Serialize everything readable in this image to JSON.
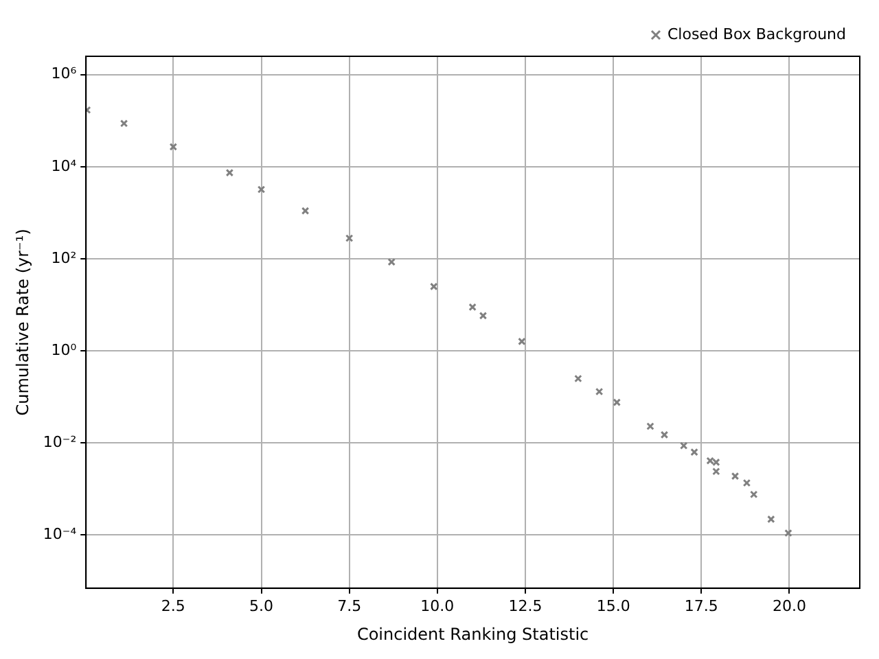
{
  "chart_data": {
    "type": "scatter",
    "xlabel": "Coincident Ranking Statistic",
    "ylabel": "Cumulative Rate (yr⁻¹)",
    "series": [
      {
        "name": "Closed Box Background",
        "color": "#808080",
        "x": [
          0.05,
          1.1,
          2.5,
          4.1,
          5.0,
          6.25,
          7.5,
          8.7,
          9.9,
          11.0,
          11.3,
          12.4,
          14.0,
          14.6,
          15.1,
          16.05,
          16.45,
          17.0,
          17.3,
          17.75,
          17.92,
          17.92,
          18.46,
          18.79,
          18.99,
          19.48,
          19.97
        ],
        "values": [
          170000,
          87000,
          27000,
          7400,
          3200,
          1100,
          280,
          85,
          25,
          8.9,
          5.8,
          1.6,
          0.25,
          0.13,
          0.076,
          0.023,
          0.015,
          0.0087,
          0.0063,
          0.0041,
          0.0038,
          0.0024,
          0.0019,
          0.00135,
          0.00076,
          0.00022,
          0.00011
        ]
      }
    ],
    "xlim": [
      0.02,
      22.0
    ],
    "ylim": [
      7e-06,
      2500000
    ],
    "log": "y",
    "xticks": [
      {
        "value": 2.5,
        "label": "2.5"
      },
      {
        "value": 5,
        "label": "5.0"
      },
      {
        "value": 7.5,
        "label": "7.5"
      },
      {
        "value": 10,
        "label": "10.0"
      },
      {
        "value": 12.5,
        "label": "12.5"
      },
      {
        "value": 15,
        "label": "15.0"
      },
      {
        "value": 17.5,
        "label": "17.5"
      },
      {
        "value": 20,
        "label": "20.0"
      }
    ],
    "yticks": [
      {
        "value": 0.0001,
        "label": "10⁻⁴"
      },
      {
        "value": 0.01,
        "label": "10⁻²"
      },
      {
        "value": 1,
        "label": "10⁰"
      },
      {
        "value": 100,
        "label": "10²"
      },
      {
        "value": 10000,
        "label": "10⁴"
      },
      {
        "value": 1000000,
        "label": "10⁶"
      }
    ],
    "grid": true,
    "legend": "top right",
    "marker": "cross"
  }
}
